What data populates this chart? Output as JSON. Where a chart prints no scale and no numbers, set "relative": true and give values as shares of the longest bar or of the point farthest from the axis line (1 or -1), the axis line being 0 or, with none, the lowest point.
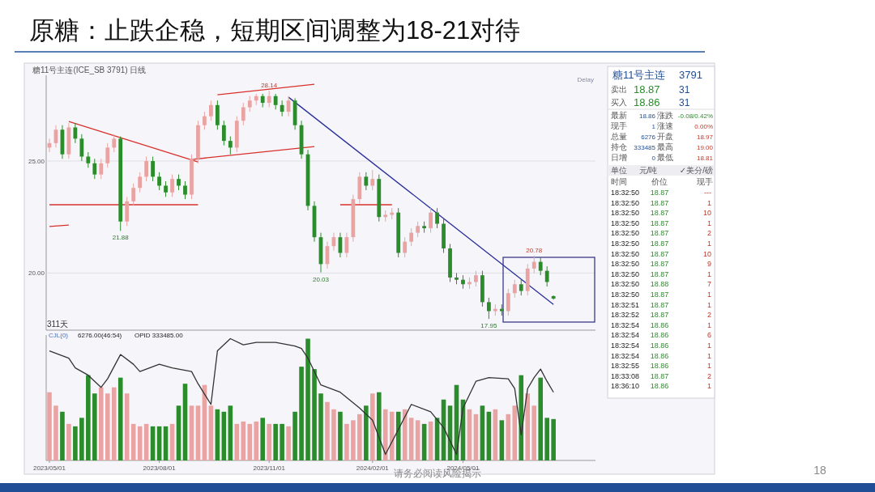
{
  "chart_data": [
    {
      "type": "candlestick",
      "title": "原糖：止跌企稳，短期区间调整为18-21对待",
      "categories": [
        null,
        null,
        null,
        null,
        null,
        null,
        null,
        null,
        null,
        null,
        null,
        null,
        null,
        null,
        null,
        null,
        null,
        null,
        null,
        null,
        null,
        null,
        null,
        null,
        null,
        null,
        null,
        null,
        null,
        null,
        null,
        null,
        null,
        null,
        null,
        null,
        null,
        null,
        null,
        null,
        null,
        null,
        null,
        null,
        null,
        null,
        null,
        null,
        null,
        null,
        null,
        null,
        null,
        null,
        null,
        null,
        null,
        null,
        null,
        null,
        null,
        null,
        null,
        null,
        null,
        null,
        null,
        null,
        null,
        null,
        null,
        null,
        null,
        null,
        null,
        null,
        null,
        null,
        null
      ],
      "ohlc": [
        [
          25.6,
          26.0,
          25.4,
          25.8
        ],
        [
          25.8,
          26.6,
          25.6,
          26.4
        ],
        [
          26.4,
          26.6,
          25.1,
          25.3
        ],
        [
          25.3,
          26.7,
          25.1,
          26.5
        ],
        [
          26.5,
          26.7,
          25.8,
          26.0
        ],
        [
          26.0,
          26.2,
          25.0,
          25.2
        ],
        [
          25.2,
          25.4,
          24.7,
          24.9
        ],
        [
          24.9,
          25.1,
          24.2,
          24.4
        ],
        [
          24.4,
          25.1,
          24.2,
          24.9
        ],
        [
          24.9,
          25.8,
          24.7,
          25.6
        ],
        [
          25.6,
          26.2,
          25.4,
          26.0
        ],
        [
          26.0,
          26.1,
          21.88,
          22.3
        ],
        [
          22.3,
          23.4,
          22.1,
          23.2
        ],
        [
          23.2,
          24.0,
          23.0,
          23.8
        ],
        [
          23.8,
          24.5,
          23.6,
          24.3
        ],
        [
          24.3,
          25.2,
          24.1,
          25.0
        ],
        [
          25.0,
          25.2,
          24.1,
          24.3
        ],
        [
          24.3,
          24.5,
          23.7,
          23.9
        ],
        [
          23.9,
          24.1,
          23.4,
          23.6
        ],
        [
          23.6,
          24.4,
          23.4,
          24.2
        ],
        [
          24.2,
          24.4,
          23.7,
          23.9
        ],
        [
          23.9,
          24.1,
          23.3,
          23.5
        ],
        [
          23.5,
          25.3,
          23.3,
          25.1
        ],
        [
          25.1,
          26.8,
          24.9,
          26.6
        ],
        [
          26.6,
          27.2,
          26.4,
          27.0
        ],
        [
          27.0,
          27.7,
          26.8,
          27.5
        ],
        [
          27.5,
          27.7,
          26.4,
          26.6
        ],
        [
          26.6,
          26.8,
          25.7,
          25.9
        ],
        [
          25.9,
          26.1,
          25.3,
          25.6
        ],
        [
          25.6,
          27.0,
          25.4,
          26.8
        ],
        [
          26.8,
          27.6,
          26.6,
          27.4
        ],
        [
          27.4,
          27.9,
          27.2,
          27.7
        ],
        [
          27.7,
          28.0,
          27.5,
          27.9
        ],
        [
          27.9,
          28.0,
          27.4,
          27.6
        ],
        [
          27.6,
          28.14,
          27.4,
          27.9
        ],
        [
          27.9,
          28.0,
          27.3,
          27.5
        ],
        [
          27.5,
          27.7,
          27.0,
          27.2
        ],
        [
          27.2,
          27.9,
          27.0,
          27.7
        ],
        [
          27.7,
          27.8,
          26.4,
          26.6
        ],
        [
          26.6,
          26.8,
          25.1,
          25.3
        ],
        [
          25.3,
          25.5,
          22.8,
          23.0
        ],
        [
          23.0,
          23.2,
          21.4,
          21.6
        ],
        [
          21.6,
          21.8,
          20.03,
          20.4
        ],
        [
          20.4,
          21.4,
          20.2,
          21.2
        ],
        [
          21.2,
          21.8,
          21.0,
          21.6
        ],
        [
          21.6,
          21.8,
          20.7,
          20.9
        ],
        [
          20.9,
          21.8,
          20.7,
          21.6
        ],
        [
          21.6,
          23.5,
          21.4,
          23.3
        ],
        [
          23.3,
          24.5,
          23.1,
          24.3
        ],
        [
          24.3,
          24.5,
          23.7,
          23.9
        ],
        [
          23.9,
          24.6,
          23.7,
          24.2
        ],
        [
          24.2,
          24.4,
          22.3,
          22.5
        ],
        [
          22.5,
          22.8,
          22.3,
          22.6
        ],
        [
          22.6,
          22.9,
          22.4,
          22.7
        ],
        [
          22.7,
          22.9,
          20.7,
          20.9
        ],
        [
          20.9,
          21.6,
          20.7,
          21.4
        ],
        [
          21.4,
          22.0,
          21.2,
          21.8
        ],
        [
          21.8,
          22.3,
          21.6,
          22.1
        ],
        [
          22.1,
          22.3,
          21.8,
          22.0
        ],
        [
          22.0,
          22.9,
          21.8,
          22.7
        ],
        [
          22.7,
          22.9,
          22.0,
          22.2
        ],
        [
          22.2,
          22.4,
          20.9,
          21.1
        ],
        [
          21.1,
          21.3,
          19.6,
          19.8
        ],
        [
          19.8,
          20.0,
          19.5,
          19.7
        ],
        [
          19.7,
          19.9,
          19.3,
          19.5
        ],
        [
          19.5,
          19.8,
          19.3,
          19.6
        ],
        [
          19.6,
          20.1,
          19.4,
          19.9
        ],
        [
          19.9,
          20.1,
          18.5,
          18.7
        ],
        [
          18.7,
          18.9,
          17.95,
          18.3
        ],
        [
          18.3,
          18.6,
          18.1,
          18.4
        ],
        [
          18.4,
          18.6,
          18.1,
          18.3
        ],
        [
          18.3,
          19.3,
          18.1,
          19.1
        ],
        [
          19.1,
          19.7,
          18.9,
          19.5
        ],
        [
          19.5,
          19.7,
          19.0,
          19.2
        ],
        [
          19.2,
          20.4,
          19.0,
          20.2
        ],
        [
          20.2,
          20.78,
          20.0,
          20.5
        ],
        [
          20.5,
          20.7,
          19.9,
          20.1
        ],
        [
          20.1,
          20.3,
          19.4,
          19.6
        ],
        [
          18.97,
          19.0,
          18.81,
          18.86
        ]
      ],
      "colors": [
        "#e9a3a3",
        "#e9a3a3",
        "#2b8c2b",
        "#e9a3a3",
        "#2b8c2b",
        "#2b8c2b",
        "#2b8c2b",
        "#2b8c2b",
        "#e9a3a3",
        "#e9a3a3",
        "#e9a3a3",
        "#2b8c2b",
        "#e9a3a3",
        "#e9a3a3",
        "#e9a3a3",
        "#e9a3a3",
        "#2b8c2b",
        "#2b8c2b",
        "#2b8c2b",
        "#e9a3a3",
        "#2b8c2b",
        "#2b8c2b",
        "#e9a3a3",
        "#e9a3a3",
        "#e9a3a3",
        "#e9a3a3",
        "#2b8c2b",
        "#2b8c2b",
        "#2b8c2b",
        "#e9a3a3",
        "#e9a3a3",
        "#e9a3a3",
        "#e9a3a3",
        "#2b8c2b",
        "#e9a3a3",
        "#2b8c2b",
        "#2b8c2b",
        "#e9a3a3",
        "#2b8c2b",
        "#2b8c2b",
        "#2b8c2b",
        "#2b8c2b",
        "#2b8c2b",
        "#e9a3a3",
        "#e9a3a3",
        "#2b8c2b",
        "#e9a3a3",
        "#e9a3a3",
        "#e9a3a3",
        "#2b8c2b",
        "#e9a3a3",
        "#2b8c2b",
        "#e9a3a3",
        "#e9a3a3",
        "#2b8c2b",
        "#e9a3a3",
        "#e9a3a3",
        "#e9a3a3",
        "#2b8c2b",
        "#e9a3a3",
        "#2b8c2b",
        "#2b8c2b",
        "#2b8c2b",
        "#2b8c2b",
        "#2b8c2b",
        "#e9a3a3",
        "#e9a3a3",
        "#2b8c2b",
        "#2b8c2b",
        "#e9a3a3",
        "#2b8c2b",
        "#e9a3a3",
        "#e9a3a3",
        "#2b8c2b",
        "#e9a3a3",
        "#e9a3a3",
        "#2b8c2b",
        "#2b8c2b",
        "#2b8c2b"
      ],
      "series": [
        {
          "type": "line",
          "color": "#d9302c",
          "values": [
            null,
            null,
            null,
            26.77,
            null,
            null,
            null,
            null,
            null,
            null,
            null,
            null,
            null,
            null,
            null,
            null,
            null,
            null,
            null,
            null,
            null,
            null,
            null,
            24.96,
            null,
            null,
            null,
            null,
            null,
            null,
            null,
            null,
            null,
            null,
            null,
            null,
            null,
            null,
            null,
            null,
            null,
            null,
            null,
            null,
            null,
            null,
            null,
            null,
            null,
            null,
            null,
            null,
            null,
            null,
            null,
            null,
            null,
            null,
            null,
            null,
            null,
            null,
            null,
            null,
            null,
            null,
            null,
            null,
            null,
            null,
            null,
            null,
            null,
            null,
            null,
            null,
            null,
            null,
            null
          ]
        },
        {
          "type": "line",
          "color": "#d9302c",
          "values": [
            null,
            null,
            null,
            null,
            null,
            null,
            null,
            null,
            null,
            null,
            null,
            null,
            null,
            null,
            null,
            null,
            null,
            null,
            null,
            null,
            null,
            null,
            25.07,
            null,
            null,
            null,
            null,
            null,
            null,
            null,
            null,
            null,
            null,
            null,
            null,
            null,
            null,
            null,
            null,
            null,
            null,
            25.65,
            null,
            null,
            null,
            null,
            null,
            null,
            null,
            null,
            null,
            null,
            null,
            null,
            null,
            null,
            null,
            null,
            null,
            null,
            null,
            null,
            null,
            null,
            null,
            null,
            null,
            null,
            null,
            null,
            null,
            null,
            null,
            null,
            null,
            null,
            null,
            null,
            null
          ]
        },
        {
          "type": "line",
          "color": "#d9302c",
          "values": [
            null,
            null,
            null,
            null,
            null,
            null,
            null,
            null,
            null,
            null,
            null,
            null,
            null,
            null,
            null,
            null,
            null,
            null,
            null,
            null,
            null,
            null,
            null,
            null,
            null,
            null,
            27.96,
            null,
            null,
            null,
            null,
            null,
            null,
            null,
            null,
            null,
            null,
            null,
            null,
            null,
            null,
            28.43,
            null,
            null,
            null,
            null,
            null,
            null,
            null,
            null,
            null,
            null,
            null,
            null,
            null,
            null,
            null,
            null,
            null,
            null,
            null,
            null,
            null,
            null,
            null,
            null,
            null,
            null,
            null,
            null,
            null,
            null,
            null,
            null,
            null,
            null,
            null,
            null,
            null
          ]
        },
        {
          "type": "line",
          "color": "#d9302c",
          "values": [
            23.05,
            null,
            null,
            null,
            null,
            null,
            null,
            null,
            null,
            null,
            null,
            null,
            null,
            null,
            null,
            null,
            null,
            null,
            null,
            null,
            null,
            null,
            null,
            23.05,
            null,
            null,
            null,
            null,
            null,
            null,
            null,
            null,
            null,
            null,
            null,
            null,
            null,
            null,
            null,
            null,
            null,
            null,
            null,
            null,
            null,
            null,
            null,
            null,
            null,
            null,
            null,
            null,
            null,
            null,
            null,
            null,
            null,
            null,
            null,
            null,
            null,
            null,
            null,
            null,
            null,
            null,
            null,
            null,
            null,
            null,
            null,
            null,
            null,
            null,
            null,
            null,
            null,
            null,
            null
          ]
        },
        {
          "type": "line",
          "color": "#d9302c",
          "values": [
            22.08,
            null,
            null,
            22.14,
            null,
            null,
            null,
            null,
            null,
            null,
            null,
            null,
            null,
            null,
            null,
            null,
            null,
            null,
            null,
            null,
            null,
            null,
            null,
            null,
            null,
            null,
            null,
            null,
            null,
            null,
            null,
            null,
            null,
            null,
            null,
            null,
            null,
            null,
            null,
            null,
            null,
            null,
            null,
            null,
            null,
            null,
            null,
            null,
            null,
            null,
            null,
            null,
            null,
            null,
            null,
            null,
            null,
            null,
            null,
            null,
            null,
            null,
            null,
            null,
            null,
            null,
            null,
            null,
            null,
            null,
            null,
            null,
            null,
            null,
            null,
            null,
            null,
            null,
            null
          ]
        },
        {
          "type": "line",
          "color": "#d9302c",
          "values": [
            null,
            null,
            null,
            null,
            null,
            null,
            null,
            null,
            null,
            null,
            null,
            null,
            null,
            null,
            null,
            null,
            null,
            null,
            null,
            null,
            null,
            null,
            null,
            null,
            null,
            null,
            null,
            null,
            null,
            null,
            null,
            null,
            null,
            null,
            null,
            null,
            null,
            null,
            null,
            null,
            null,
            null,
            null,
            null,
            null,
            23.05,
            null,
            null,
            null,
            null,
            null,
            null,
            null,
            23.05,
            null,
            null,
            null,
            null,
            null,
            null,
            null,
            null,
            null,
            null,
            null,
            null,
            null,
            null,
            null,
            null,
            null,
            null,
            null,
            null,
            null,
            null,
            null,
            null,
            null
          ]
        },
        {
          "type": "line",
          "color": "#2a2f9a",
          "values": [
            null,
            null,
            null,
            null,
            null,
            null,
            null,
            null,
            null,
            null,
            null,
            null,
            null,
            null,
            null,
            null,
            null,
            null,
            null,
            null,
            null,
            null,
            null,
            null,
            null,
            null,
            null,
            null,
            null,
            null,
            null,
            null,
            null,
            null,
            null,
            null,
            null,
            27.85,
            null,
            null,
            null,
            null,
            null,
            null,
            null,
            null,
            null,
            null,
            null,
            null,
            null,
            null,
            null,
            null,
            null,
            null,
            null,
            null,
            null,
            null,
            null,
            null,
            null,
            null,
            null,
            null,
            null,
            null,
            null,
            null,
            null,
            null,
            null,
            null,
            null,
            null,
            null,
            null,
            18.6
          ]
        }
      ],
      "ylim": [
        17.45,
        28.83
      ],
      "yticks": [
        {
          "value": 25,
          "label": "25.00"
        },
        {
          "value": 20,
          "label": "20.00"
        }
      ],
      "tick_labels": "y",
      "grid": "y",
      "annotations": [
        "糖11号主连(ICE_SB 3791) 日线",
        "Delay",
        "311天",
        "请务必阅读风险揭示",
        "18",
        {
          "text": "28.14",
          "y": 28.14
        },
        {
          "text": "21.88",
          "y": 21.88
        },
        {
          "text": "20.03",
          "y": 20.03
        },
        {
          "text": "17.95",
          "y": 17.95
        },
        {
          "text": "20.78",
          "y": 20.78
        }
      ]
    },
    {
      "type": "bar",
      "relative": true,
      "categories": [
        "2023/05/01",
        null,
        null,
        null,
        null,
        null,
        null,
        null,
        null,
        null,
        null,
        null,
        null,
        null,
        null,
        null,
        null,
        "2023/08/01",
        null,
        null,
        null,
        null,
        null,
        null,
        null,
        null,
        null,
        null,
        null,
        null,
        null,
        null,
        null,
        null,
        "2023/11/01",
        null,
        null,
        null,
        null,
        null,
        null,
        null,
        null,
        null,
        null,
        null,
        null,
        null,
        null,
        null,
        "2024/02/01",
        null,
        null,
        null,
        null,
        null,
        null,
        null,
        null,
        null,
        null,
        null,
        null,
        null,
        "2024/05/01",
        null,
        null,
        null,
        null,
        null,
        null,
        null,
        null,
        null,
        null,
        null,
        null,
        null,
        null
      ],
      "series": [
        {
          "type": "bar",
          "values": [
            0.56,
            0.45,
            0.4,
            0.3,
            0.28,
            0.35,
            0.7,
            0.55,
            0.6,
            0.55,
            0.6,
            0.68,
            0.55,
            0.3,
            0.28,
            0.3,
            0.28,
            0.28,
            0.28,
            0.3,
            0.45,
            0.63,
            0.45,
            0.45,
            0.62,
            0.45,
            0.42,
            0.4,
            0.45,
            0.3,
            0.32,
            0.3,
            0.32,
            0.35,
            0.3,
            0.3,
            0.3,
            0.28,
            0.4,
            0.77,
            1.0,
            0.75,
            0.55,
            0.48,
            0.42,
            0.4,
            0.3,
            0.33,
            0.38,
            0.45,
            0.55,
            0.56,
            0.42,
            0.4,
            0.4,
            0.42,
            0.35,
            0.33,
            0.3,
            0.32,
            0.35,
            0.5,
            0.45,
            0.62,
            0.5,
            0.42,
            0.38,
            0.45,
            0.4,
            0.42,
            0.33,
            0.38,
            0.45,
            0.7,
            0.55,
            0.45,
            0.68,
            0.35,
            0.34
          ],
          "colors": [
            "#e9a3a3",
            "#e9a3a3",
            "#2b8c2b",
            "#e9a3a3",
            "#2b8c2b",
            "#2b8c2b",
            "#2b8c2b",
            "#2b8c2b",
            "#e9a3a3",
            "#e9a3a3",
            "#e9a3a3",
            "#2b8c2b",
            "#e9a3a3",
            "#e9a3a3",
            "#e9a3a3",
            "#e9a3a3",
            "#2b8c2b",
            "#2b8c2b",
            "#2b8c2b",
            "#e9a3a3",
            "#2b8c2b",
            "#2b8c2b",
            "#e9a3a3",
            "#e9a3a3",
            "#e9a3a3",
            "#e9a3a3",
            "#2b8c2b",
            "#2b8c2b",
            "#2b8c2b",
            "#e9a3a3",
            "#e9a3a3",
            "#e9a3a3",
            "#e9a3a3",
            "#2b8c2b",
            "#e9a3a3",
            "#2b8c2b",
            "#2b8c2b",
            "#e9a3a3",
            "#2b8c2b",
            "#2b8c2b",
            "#2b8c2b",
            "#2b8c2b",
            "#2b8c2b",
            "#e9a3a3",
            "#e9a3a3",
            "#2b8c2b",
            "#e9a3a3",
            "#e9a3a3",
            "#e9a3a3",
            "#2b8c2b",
            "#e9a3a3",
            "#2b8c2b",
            "#e9a3a3",
            "#e9a3a3",
            "#2b8c2b",
            "#e9a3a3",
            "#e9a3a3",
            "#e9a3a3",
            "#2b8c2b",
            "#e9a3a3",
            "#2b8c2b",
            "#2b8c2b",
            "#2b8c2b",
            "#2b8c2b",
            "#2b8c2b",
            "#e9a3a3",
            "#e9a3a3",
            "#2b8c2b",
            "#2b8c2b",
            "#e9a3a3",
            "#2b8c2b",
            "#e9a3a3",
            "#e9a3a3",
            "#2b8c2b",
            "#e9a3a3",
            "#e9a3a3",
            "#2b8c2b",
            "#2b8c2b",
            "#2b8c2b"
          ]
        },
        {
          "type": "line",
          "color": "#333333",
          "values": [
            0.9,
            null,
            null,
            0.84,
            0.76,
            null,
            0.7,
            null,
            0.6,
            0.67,
            null,
            0.87,
            null,
            0.79,
            0.73,
            null,
            null,
            0.79,
            null,
            0.76,
            null,
            null,
            0.73,
            0.63,
            null,
            0.46,
            0.9,
            null,
            1.0,
            null,
            0.95,
            null,
            0.97,
            null,
            null,
            0.97,
            null,
            null,
            0.94,
            0.92,
            0.84,
            null,
            0.62,
            null,
            null,
            0.56,
            null,
            null,
            0.43,
            null,
            0.33,
            null,
            0.05,
            null,
            null,
            null,
            0.46,
            null,
            null,
            0.4,
            null,
            0.27,
            null,
            0.05,
            0.43,
            null,
            0.65,
            null,
            0.68,
            null,
            null,
            0.67,
            0.59,
            0.21,
            0.59,
            0.68,
            0.75,
            0.65,
            0.56
          ]
        }
      ],
      "tick_labels": "x",
      "annotations": [
        "CJL(0)",
        "6276.00(46:54)",
        "OPID 333485.00"
      ]
    },
    {
      "type": "other",
      "annotations": [
        "糖11号主连",
        "3791",
        "卖出",
        "18.87",
        "31",
        "买入",
        "18.86",
        "31",
        "最新",
        "18.86",
        "涨跌",
        "-0.08/0.42%",
        "现手",
        "1",
        "涨速",
        "0.00%",
        "总量",
        "6276",
        "开盘",
        "18.97",
        "持仓",
        "333485",
        "最高",
        "19.00",
        "日增",
        "0",
        "最低",
        "18.81",
        "单位",
        "元/吨",
        "✓美分/磅",
        "时间",
        "价位",
        "现手",
        "18:32:50",
        "18.87",
        "---",
        "18:32:50",
        "18.87",
        "1",
        "18:32:50",
        "18.87",
        "10",
        "18:32:50",
        "18.87",
        "1",
        "18:32:50",
        "18.87",
        "2",
        "18:32:50",
        "18.87",
        "1",
        "18:32:50",
        "18.87",
        "10",
        "18:32:50",
        "18.87",
        "9",
        "18:32:50",
        "18.87",
        "1",
        "18:32:50",
        "18.88",
        "7",
        "18:32:50",
        "18.87",
        "1",
        "18:32:51",
        "18.87",
        "1",
        "18:32:52",
        "18.87",
        "2",
        "18:32:54",
        "18.86",
        "1",
        "18:32:54",
        "18.86",
        "6",
        "18:32:54",
        "18.86",
        "1",
        "18:32:54",
        "18.86",
        "1",
        "18:32:55",
        "18.86",
        "1",
        "18:33:08",
        "18.87",
        "2",
        "18:36:10",
        "18.86",
        "1"
      ]
    }
  ]
}
